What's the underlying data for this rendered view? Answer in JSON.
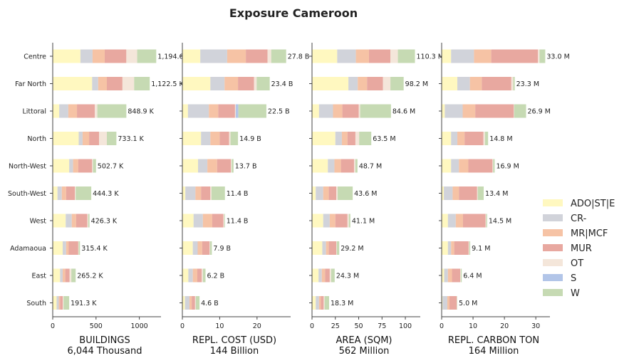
{
  "chart_data": {
    "type": "bar",
    "orientation": "horizontal",
    "stacked": true,
    "title": "Exposure Cameroon",
    "categories": [
      "Centre",
      "Far North",
      "Littoral",
      "North",
      "North-West",
      "South-West",
      "West",
      "Adamaoua",
      "East",
      "South"
    ],
    "series_names": [
      "ADO|ST|E",
      "CR-",
      "MR|MCF",
      "MUR",
      "OT",
      "S",
      "W"
    ],
    "colors": [
      "#fff8c0",
      "#d1d3da",
      "#f6c3a5",
      "#e8a8a0",
      "#f4e6da",
      "#b2c5e8",
      "#c6dab3"
    ],
    "legend_position": "right",
    "grid": false,
    "panels": [
      {
        "xlabel": "BUILDINGS",
        "total": "6,044 Thousand",
        "xlim": [
          0,
          1250
        ],
        "xticks": [
          "0",
          "500",
          "1000"
        ],
        "xtick_values": [
          0,
          500,
          1000
        ],
        "value_labels": [
          "1,194.6 K",
          "1,122.5 K",
          "848.9 K",
          "733.1 K",
          "502.7 K",
          "444.3 K",
          "426.3 K",
          "315.4 K",
          "265.2 K",
          "191.3 K"
        ],
        "stacks": [
          [
            320,
            140,
            140,
            250,
            125,
            0,
            220
          ],
          [
            455,
            70,
            100,
            180,
            135,
            0,
            180
          ],
          [
            75,
            105,
            100,
            205,
            30,
            0,
            335
          ],
          [
            300,
            45,
            75,
            115,
            90,
            0,
            110
          ],
          [
            190,
            45,
            60,
            160,
            10,
            0,
            35
          ],
          [
            55,
            50,
            50,
            100,
            10,
            0,
            180
          ],
          [
            150,
            70,
            50,
            130,
            10,
            0,
            15
          ],
          [
            115,
            40,
            30,
            110,
            5,
            0,
            15
          ],
          [
            85,
            30,
            30,
            50,
            20,
            0,
            50
          ],
          [
            45,
            25,
            15,
            30,
            10,
            0,
            65
          ]
        ]
      },
      {
        "xlabel": "REPL. COST (USD)",
        "total": "144 Billion",
        "xlim": [
          0,
          29
        ],
        "xticks": [
          "0",
          "10",
          "20"
        ],
        "xtick_values": [
          0,
          10,
          20
        ],
        "value_labels": [
          "27.8 B",
          "23.4 B",
          "22.5 B",
          "14.9 B",
          "13.7 B",
          "11.4 B",
          "11.4 B",
          "7.9 B",
          "6.2 B",
          "4.6 B"
        ],
        "stacks": [
          [
            4.8,
            7.2,
            5.0,
            5.8,
            1.0,
            0,
            4.0
          ],
          [
            7.5,
            3.8,
            3.6,
            4.3,
            0.7,
            0,
            3.5
          ],
          [
            1.5,
            5.6,
            2.5,
            4.5,
            0.2,
            0.7,
            7.5
          ],
          [
            5.0,
            2.5,
            2.5,
            2.5,
            0.4,
            0,
            2.0
          ],
          [
            4.2,
            2.5,
            2.6,
            3.7,
            0.2,
            0,
            0.5
          ],
          [
            0.8,
            2.7,
            1.5,
            2.5,
            0.3,
            0,
            3.6
          ],
          [
            3.0,
            2.5,
            2.5,
            3.0,
            0.2,
            0,
            0.2
          ],
          [
            2.8,
            1.3,
            1.2,
            2.0,
            0.1,
            0,
            0.5
          ],
          [
            1.6,
            1.2,
            1.2,
            1.2,
            0.3,
            0,
            0.7
          ],
          [
            0.7,
            1.2,
            0.6,
            0.9,
            0.2,
            0,
            1.0
          ]
        ]
      },
      {
        "xlabel": "AREA (SQM)",
        "total": "562 Million",
        "xlim": [
          0,
          116
        ],
        "xticks": [
          "0",
          "25",
          "50",
          "75",
          "100"
        ],
        "xtick_values": [
          0,
          25,
          50,
          75,
          100
        ],
        "value_labels": [
          "110.3 M",
          "98.2 M",
          "84.6 M",
          "63.5 M",
          "48.7 M",
          "43.6 M",
          "41.1 M",
          "29.2 M",
          "24.3 M",
          "18.3 M"
        ],
        "stacks": [
          [
            27.0,
            20.0,
            14.0,
            23.0,
            8.0,
            0,
            18.3
          ],
          [
            39.0,
            10.0,
            10.0,
            17.0,
            8.0,
            0,
            14.2
          ],
          [
            7.5,
            15.0,
            10.0,
            17.6,
            1.5,
            0,
            33.0
          ],
          [
            25.0,
            7.0,
            6.0,
            8.5,
            4.0,
            0,
            13.0
          ],
          [
            17.0,
            7.0,
            7.0,
            14.0,
            1.5,
            0,
            2.2
          ],
          [
            4.0,
            8.0,
            6.0,
            8.0,
            1.5,
            0,
            16.1
          ],
          [
            12.0,
            7.0,
            6.0,
            13.0,
            1.5,
            0,
            1.6
          ],
          [
            11.0,
            4.0,
            3.0,
            8.0,
            0.5,
            0,
            2.7
          ],
          [
            7.0,
            3.5,
            3.5,
            5.0,
            1.5,
            0,
            3.8
          ],
          [
            4.0,
            3.5,
            2.0,
            3.0,
            1.0,
            0,
            4.8
          ]
        ]
      },
      {
        "xlabel": "REPL. CARBON TON",
        "total": "164 Million",
        "xlim": [
          0,
          34.5
        ],
        "xticks": [
          "0",
          "10",
          "20",
          "30"
        ],
        "xtick_values": [
          0,
          10,
          20,
          30
        ],
        "value_labels": [
          "33.0 M",
          "23.3 M",
          "26.9 M",
          "14.8 M",
          "16.9 M",
          "13.4 M",
          "14.5 M",
          "9.1 M",
          "6.4 M",
          "5.0 M"
        ],
        "stacks": [
          [
            3.0,
            7.3,
            5.5,
            14.9,
            0.5,
            0,
            1.8
          ],
          [
            5.0,
            4.0,
            3.8,
            9.4,
            0.6,
            0,
            0.5
          ],
          [
            1.0,
            5.7,
            4.0,
            12.3,
            0.1,
            0,
            3.8
          ],
          [
            3.0,
            2.0,
            2.3,
            6.0,
            0.5,
            0,
            1.0
          ],
          [
            3.0,
            2.5,
            3.0,
            7.7,
            0.2,
            0,
            0.5
          ],
          [
            0.7,
            2.8,
            2.0,
            5.8,
            0.2,
            0,
            1.9
          ],
          [
            2.0,
            2.5,
            2.3,
            7.2,
            0.2,
            0,
            0.3
          ],
          [
            2.0,
            1.0,
            1.0,
            4.6,
            0.2,
            0,
            0.3
          ],
          [
            0.8,
            1.2,
            1.3,
            2.6,
            0.2,
            0,
            0.3
          ],
          [
            0.3,
            1.5,
            0.7,
            2.3,
            0.1,
            0,
            0.1
          ]
        ]
      }
    ]
  }
}
